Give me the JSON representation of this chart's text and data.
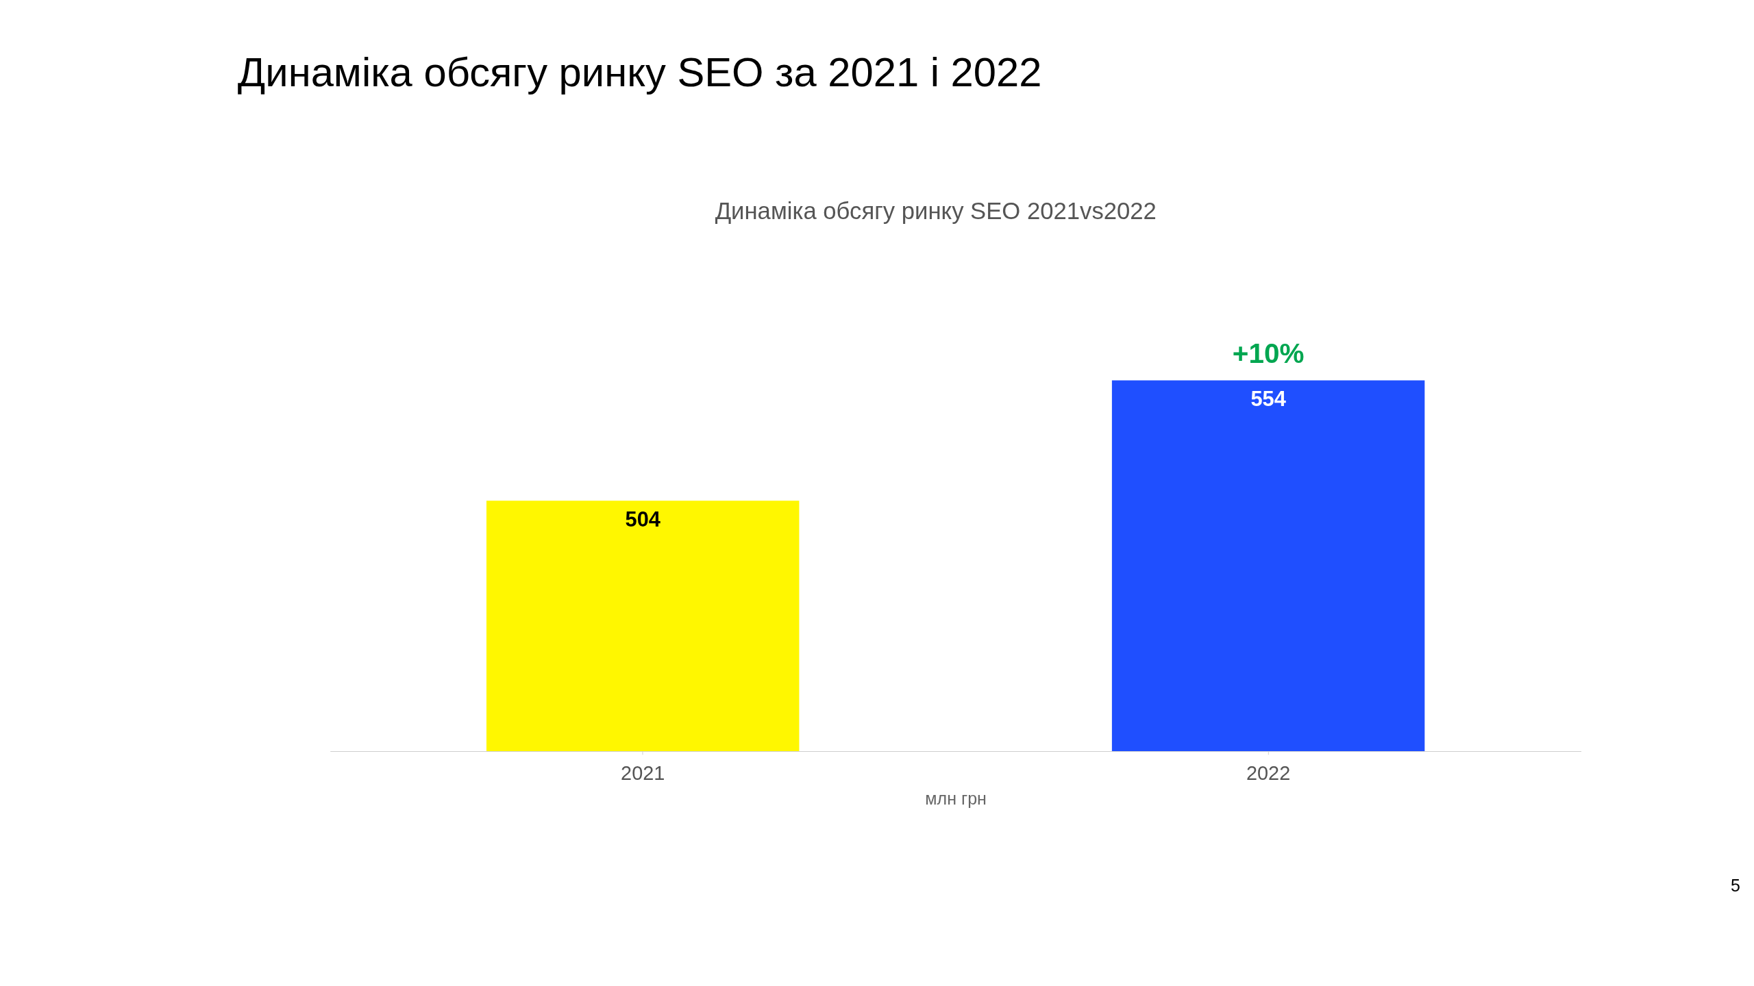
{
  "chart_data": {
    "type": "bar",
    "title": "Динаміка обсягу ринку  SEO за 2021 і 2022",
    "subtitle": "Динаміка обсягу ринку SEO 2021vs2022",
    "xlabel": "млн грн",
    "categories": [
      "2021",
      "2022"
    ],
    "values": [
      504,
      554
    ],
    "colors": [
      "#fff700",
      "#1f4fff"
    ],
    "ylim": [
      400,
      554
    ],
    "tick_labels": "x",
    "data_labels": true,
    "annotations": [
      {
        "text": "+10%",
        "x": "2022",
        "y": 554
      },
      "5"
    ]
  }
}
